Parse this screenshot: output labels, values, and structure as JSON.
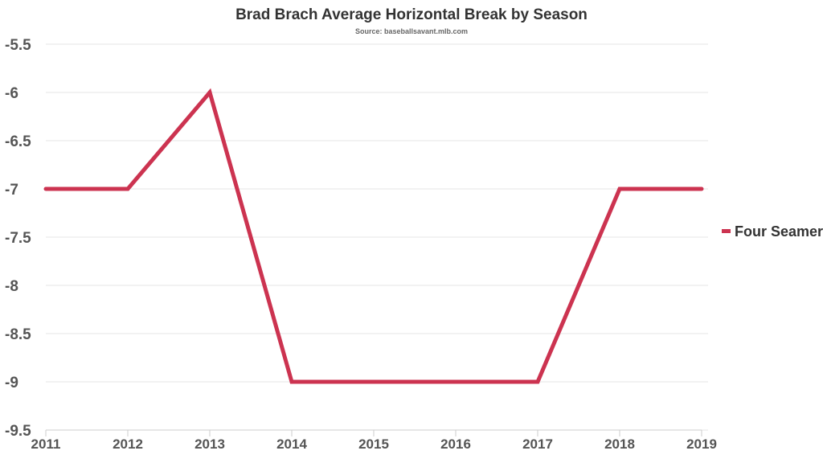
{
  "chart_data": {
    "type": "line",
    "title": "Brad Brach Average Horizontal Break by Season",
    "subtitle": "Source: baseballsavant.mlb.com",
    "xlabel": "",
    "ylabel": "",
    "categories": [
      "2011",
      "2012",
      "2013",
      "2014",
      "2015",
      "2016",
      "2017",
      "2018",
      "2019"
    ],
    "series": [
      {
        "name": "Four Seamer",
        "color": "#cc3350",
        "values": [
          -7,
          -7,
          -6,
          -9,
          -9,
          -9,
          -9,
          -7,
          -7
        ]
      }
    ],
    "ylim": [
      -9.5,
      -5.5
    ],
    "y_ticks": [
      "-5.5",
      "-6",
      "-6.5",
      "-7",
      "-7.5",
      "-8",
      "-8.5",
      "-9",
      "-9.5"
    ],
    "y_tick_values": [
      -5.5,
      -6,
      -6.5,
      -7,
      -7.5,
      -8,
      -8.5,
      -9,
      -9.5
    ],
    "y_axis_reversed": true,
    "grid": true,
    "legend_position": "right"
  }
}
